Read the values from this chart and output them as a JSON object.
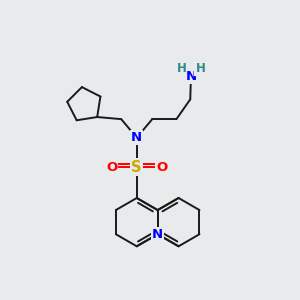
{
  "bg_color": "#e8eaeb",
  "bond_color": "#1a1a1a",
  "N_color": "#0000ff",
  "S_color": "#ccaa00",
  "O_color": "#ff0000",
  "NH2_N_color": "#0000ff",
  "H_color": "#2e8b8b",
  "figsize": [
    3.0,
    3.0
  ],
  "dpi": 100,
  "lw": 1.4,
  "xlim": [
    0,
    10
  ],
  "ylim": [
    0,
    10
  ]
}
